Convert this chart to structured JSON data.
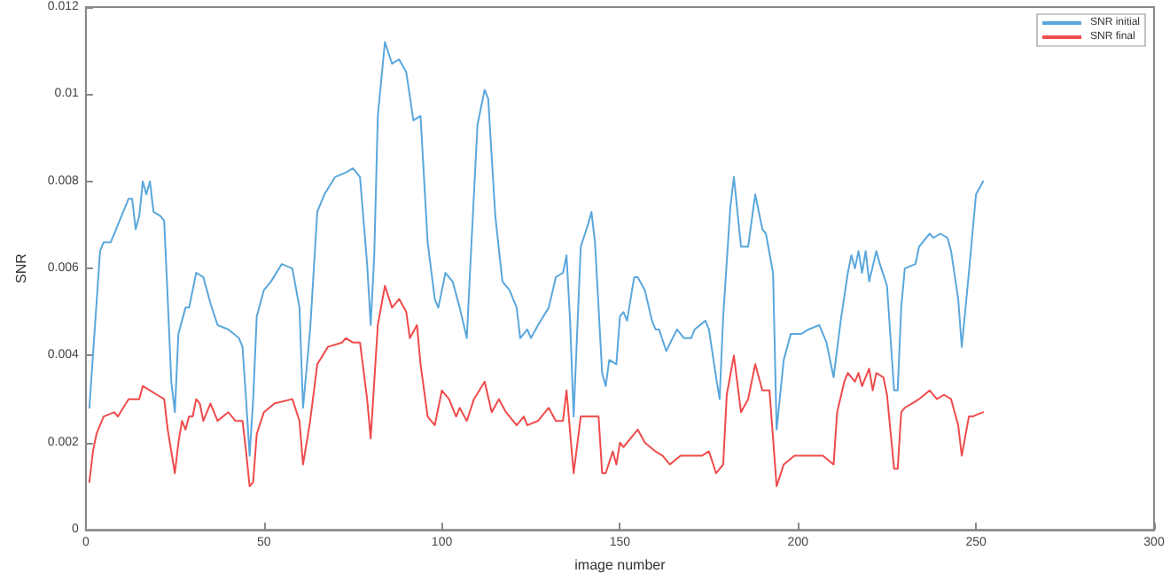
{
  "chart_data": {
    "type": "line",
    "xlabel": "image number",
    "ylabel": "SNR",
    "xlim": [
      0,
      300
    ],
    "xticks": [
      0,
      50,
      100,
      150,
      200,
      250,
      300
    ],
    "ylim": [
      0,
      0.012
    ],
    "yticks": [
      0,
      0.002,
      0.004,
      0.006,
      0.008,
      0.01,
      0.012
    ],
    "grid": false,
    "legend": "top right",
    "marker": "none",
    "line_style": "solid",
    "series": [
      {
        "name": "SNR initial",
        "color": "#5aa7dc",
        "x": [
          1,
          3,
          4,
          5,
          7,
          9,
          10,
          12,
          13,
          14,
          15,
          16,
          17,
          18,
          19,
          21,
          22,
          23,
          24,
          25,
          26,
          28,
          29,
          31,
          33,
          35,
          37,
          40,
          43,
          44,
          45,
          46,
          47,
          48,
          50,
          52,
          55,
          58,
          60,
          61,
          63,
          65,
          67,
          70,
          73,
          75,
          77,
          79,
          80,
          81,
          82,
          84,
          86,
          88,
          90,
          92,
          94,
          96,
          98,
          99,
          101,
          103,
          105,
          107,
          108,
          110,
          112,
          113,
          115,
          117,
          119,
          121,
          122,
          124,
          125,
          127,
          130,
          132,
          134,
          135,
          136,
          137,
          139,
          141,
          142,
          143,
          145,
          146,
          147,
          149,
          150,
          151,
          152,
          154,
          155,
          157,
          159,
          160,
          161,
          163,
          166,
          168,
          170,
          171,
          174,
          175,
          177,
          178,
          179,
          181,
          182,
          184,
          186,
          188,
          190,
          191,
          193,
          194,
          196,
          198,
          201,
          203,
          206,
          208,
          210,
          212,
          214,
          215,
          216,
          217,
          218,
          219,
          220,
          222,
          223,
          225,
          227,
          228,
          229,
          230,
          233,
          234,
          237,
          238,
          240,
          242,
          243,
          245,
          246,
          248,
          250,
          252
        ],
        "values": [
          0.0028,
          0.0052,
          0.0064,
          0.0066,
          0.0066,
          0.007,
          0.0072,
          0.0076,
          0.0076,
          0.0069,
          0.0072,
          0.008,
          0.0077,
          0.008,
          0.0073,
          0.0072,
          0.0071,
          0.0053,
          0.0034,
          0.0027,
          0.0045,
          0.0051,
          0.0051,
          0.0059,
          0.0058,
          0.0052,
          0.0047,
          0.0046,
          0.0044,
          0.0042,
          0.003,
          0.0017,
          0.003,
          0.0049,
          0.0055,
          0.0057,
          0.0061,
          0.006,
          0.0051,
          0.0028,
          0.0046,
          0.0073,
          0.0077,
          0.0081,
          0.0082,
          0.0083,
          0.0081,
          0.0061,
          0.0047,
          0.0063,
          0.0095,
          0.0112,
          0.0107,
          0.0108,
          0.0105,
          0.0094,
          0.0095,
          0.0066,
          0.0053,
          0.0051,
          0.0059,
          0.0057,
          0.0051,
          0.0044,
          0.0061,
          0.0093,
          0.0101,
          0.0099,
          0.0072,
          0.0057,
          0.0055,
          0.0051,
          0.0044,
          0.0046,
          0.0044,
          0.0047,
          0.0051,
          0.0058,
          0.0059,
          0.0063,
          0.0048,
          0.0026,
          0.0065,
          0.007,
          0.0073,
          0.0066,
          0.0036,
          0.0033,
          0.0039,
          0.0038,
          0.0049,
          0.005,
          0.0048,
          0.0058,
          0.0058,
          0.0055,
          0.0048,
          0.0046,
          0.0046,
          0.0041,
          0.0046,
          0.0044,
          0.0044,
          0.0046,
          0.0048,
          0.0046,
          0.0035,
          0.003,
          0.0049,
          0.0074,
          0.0081,
          0.0065,
          0.0065,
          0.0077,
          0.0069,
          0.0068,
          0.0059,
          0.0023,
          0.0039,
          0.0045,
          0.0045,
          0.0046,
          0.0047,
          0.0043,
          0.0035,
          0.0048,
          0.0059,
          0.0063,
          0.006,
          0.0064,
          0.0059,
          0.0064,
          0.0057,
          0.0064,
          0.0061,
          0.0056,
          0.0032,
          0.0032,
          0.0051,
          0.006,
          0.0061,
          0.0065,
          0.0068,
          0.0067,
          0.0068,
          0.0067,
          0.0064,
          0.0053,
          0.0042,
          0.0059,
          0.0077,
          0.008
        ]
      },
      {
        "name": "SNR final",
        "color": "#ef4b4b",
        "x": [
          1,
          2,
          3,
          5,
          8,
          9,
          12,
          14,
          15,
          16,
          18,
          20,
          22,
          23,
          25,
          26,
          27,
          28,
          29,
          30,
          31,
          32,
          33,
          35,
          37,
          40,
          42,
          44,
          45,
          46,
          47,
          48,
          50,
          53,
          58,
          60,
          61,
          63,
          65,
          68,
          72,
          73,
          75,
          77,
          79,
          80,
          81,
          82,
          84,
          86,
          88,
          90,
          91,
          93,
          94,
          96,
          98,
          100,
          102,
          104,
          105,
          107,
          109,
          112,
          114,
          116,
          118,
          121,
          123,
          124,
          127,
          130,
          132,
          134,
          135,
          137,
          139,
          142,
          144,
          145,
          146,
          148,
          149,
          150,
          151,
          153,
          155,
          157,
          160,
          162,
          164,
          167,
          170,
          173,
          175,
          177,
          179,
          180,
          182,
          184,
          186,
          188,
          190,
          192,
          194,
          196,
          199,
          203,
          207,
          210,
          211,
          213,
          214,
          216,
          217,
          218,
          220,
          221,
          222,
          224,
          225,
          227,
          228,
          229,
          230,
          232,
          234,
          237,
          239,
          241,
          243,
          245,
          246,
          248,
          249,
          252
        ],
        "values": [
          0.0011,
          0.0018,
          0.0022,
          0.0026,
          0.0027,
          0.0026,
          0.003,
          0.003,
          0.003,
          0.0033,
          0.0032,
          0.0031,
          0.003,
          0.0023,
          0.0013,
          0.002,
          0.0025,
          0.0023,
          0.0026,
          0.0026,
          0.003,
          0.0029,
          0.0025,
          0.0029,
          0.0025,
          0.0027,
          0.0025,
          0.0025,
          0.0018,
          0.001,
          0.0011,
          0.0022,
          0.0027,
          0.0029,
          0.003,
          0.0025,
          0.0015,
          0.0025,
          0.0038,
          0.0042,
          0.0043,
          0.0044,
          0.0043,
          0.0043,
          0.003,
          0.0021,
          0.0034,
          0.0047,
          0.0056,
          0.0051,
          0.0053,
          0.005,
          0.0044,
          0.0047,
          0.0038,
          0.0026,
          0.0024,
          0.0032,
          0.003,
          0.0026,
          0.0028,
          0.0025,
          0.003,
          0.0034,
          0.0027,
          0.003,
          0.0027,
          0.0024,
          0.0026,
          0.0024,
          0.0025,
          0.0028,
          0.0025,
          0.0025,
          0.0032,
          0.0013,
          0.0026,
          0.0026,
          0.0026,
          0.0013,
          0.0013,
          0.0018,
          0.0015,
          0.002,
          0.0019,
          0.0021,
          0.0023,
          0.002,
          0.0018,
          0.0017,
          0.0015,
          0.0017,
          0.0017,
          0.0017,
          0.0018,
          0.0013,
          0.0015,
          0.0031,
          0.004,
          0.0027,
          0.003,
          0.0038,
          0.0032,
          0.0032,
          0.001,
          0.0015,
          0.0017,
          0.0017,
          0.0017,
          0.0015,
          0.0027,
          0.0034,
          0.0036,
          0.0034,
          0.0036,
          0.0033,
          0.0037,
          0.0032,
          0.0036,
          0.0035,
          0.0031,
          0.0014,
          0.0014,
          0.0027,
          0.0028,
          0.0029,
          0.003,
          0.0032,
          0.003,
          0.0031,
          0.003,
          0.0024,
          0.0017,
          0.0026,
          0.0026,
          0.0027
        ]
      }
    ]
  }
}
